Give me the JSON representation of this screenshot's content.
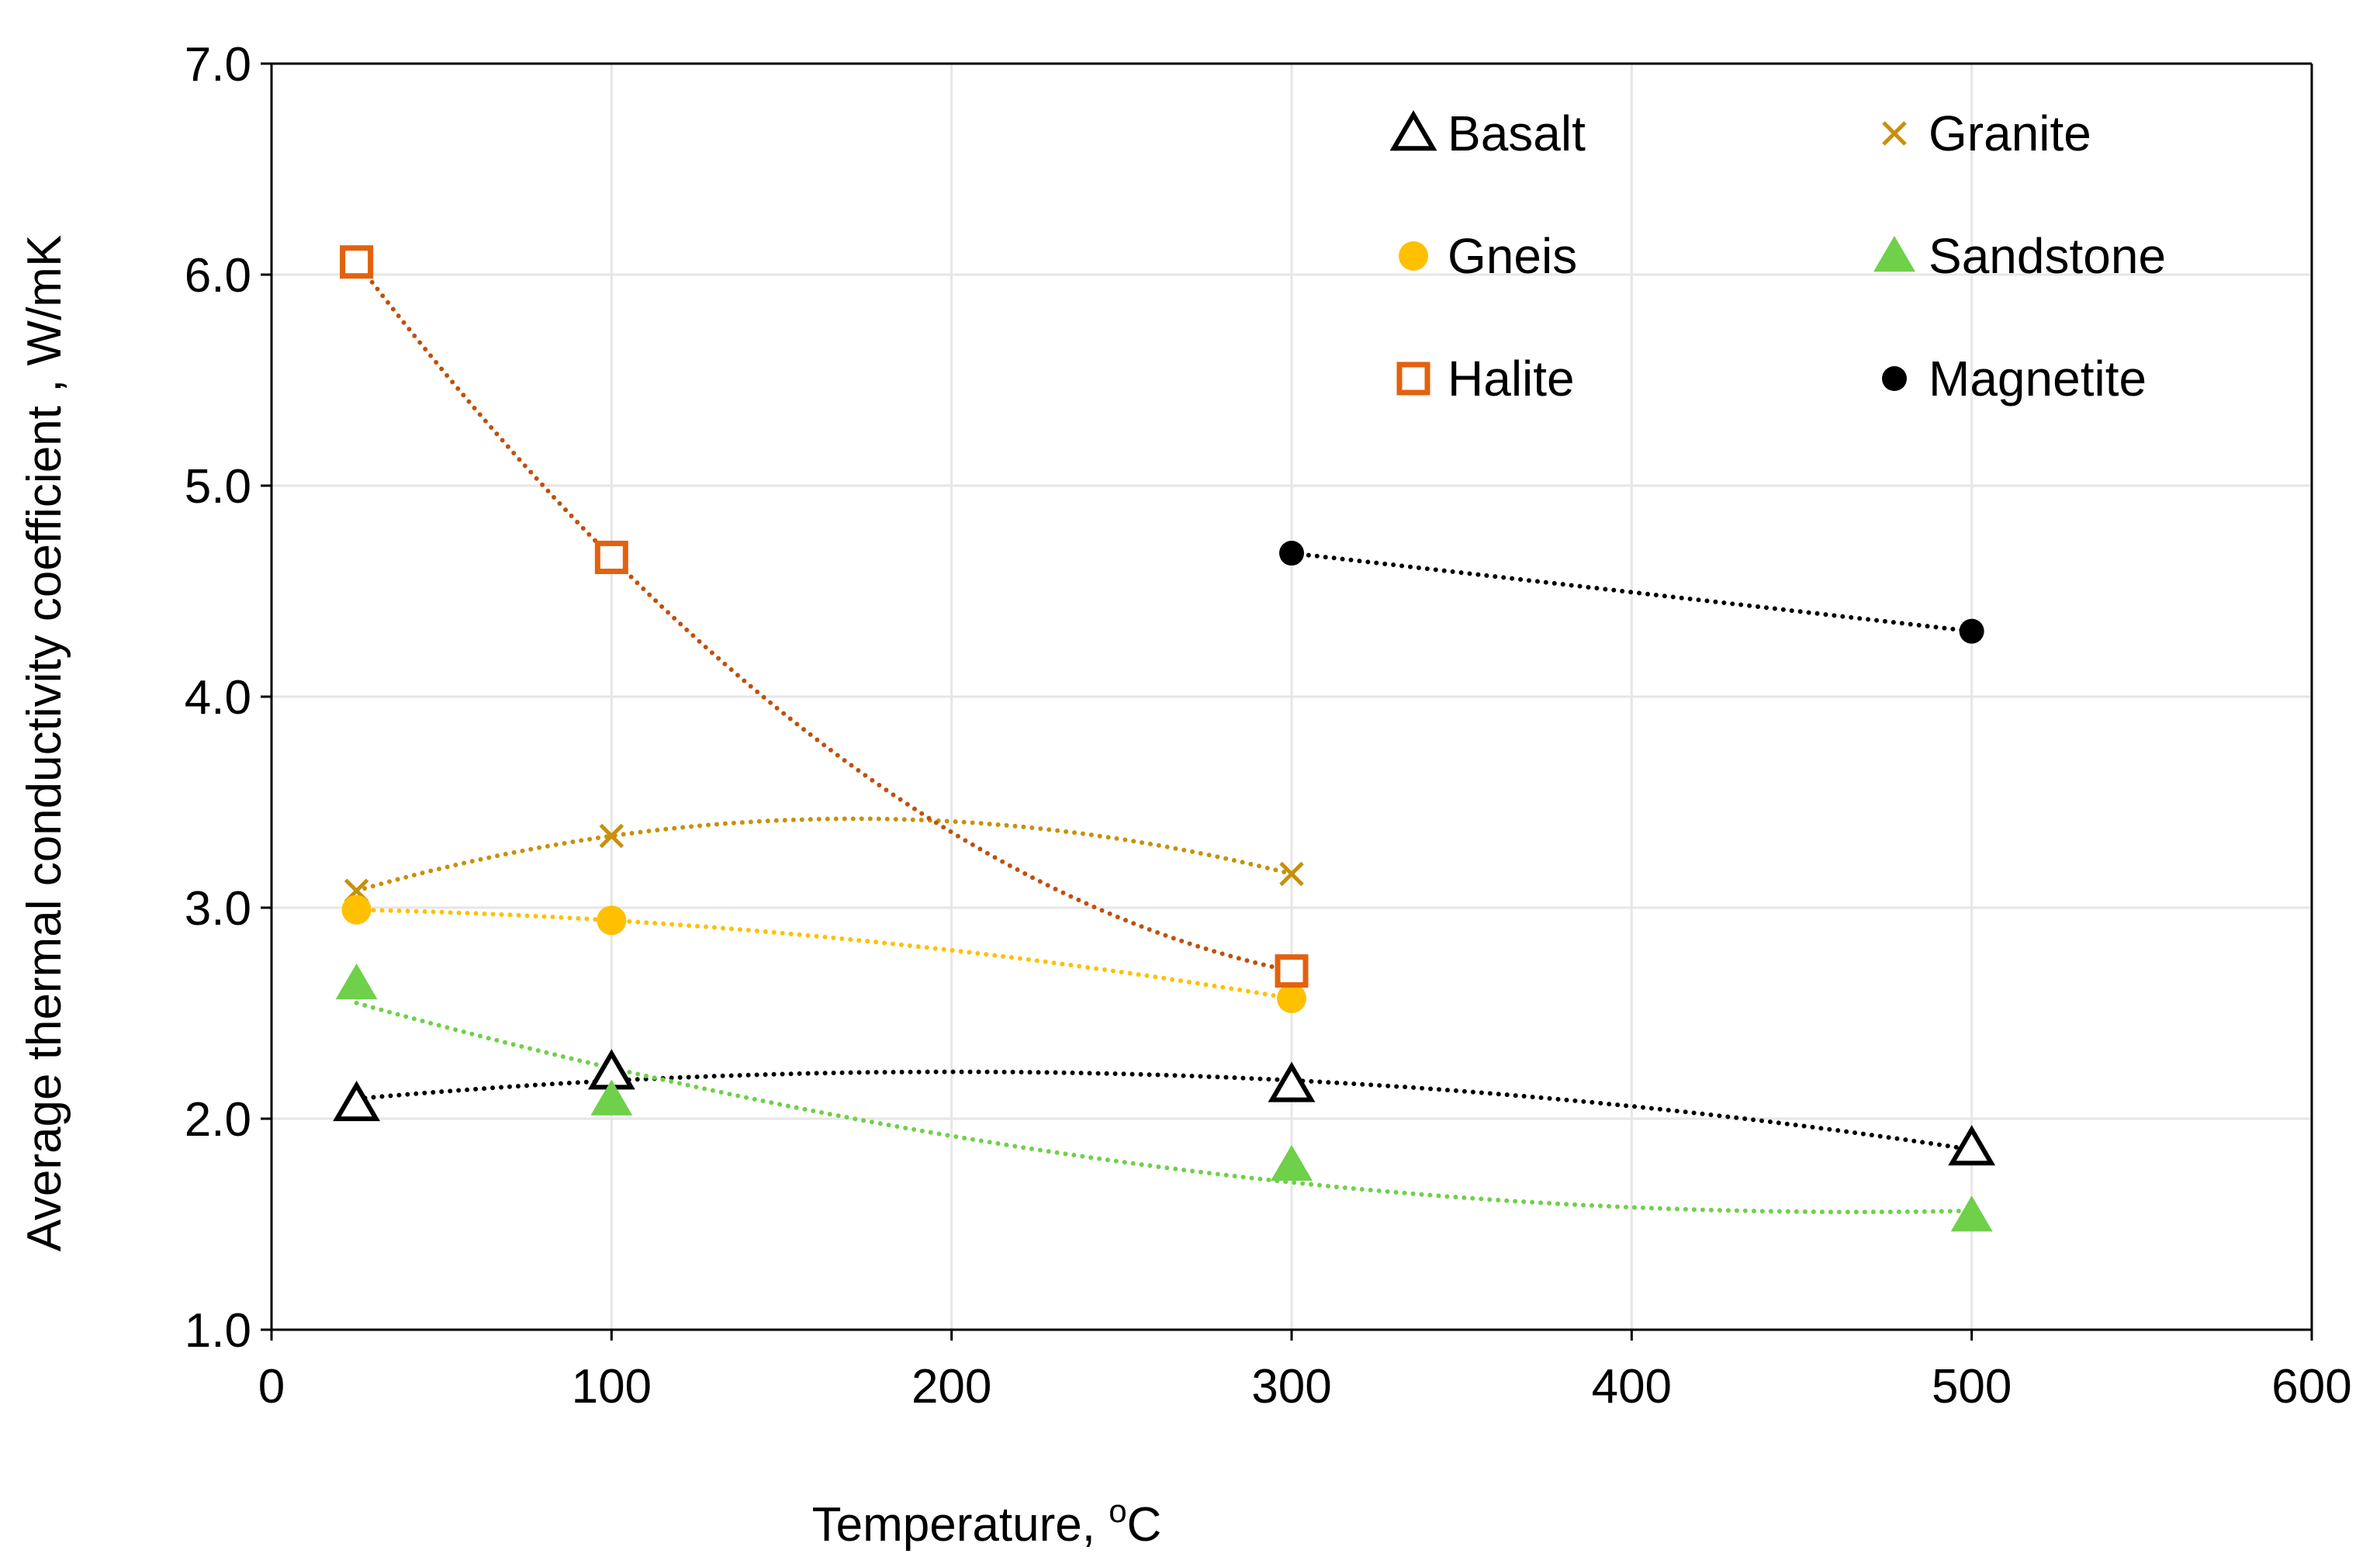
{
  "chart_data": {
    "type": "scatter",
    "title": "",
    "xlabel": "Temperature, ",
    "xlabel_sup": "o",
    "xlabel_unit": "C",
    "ylabel": "Average thermal conductivity coefficient , W/mK",
    "xlim": [
      0,
      600
    ],
    "ylim": [
      1.0,
      7.0
    ],
    "xticks": [
      0,
      100,
      200,
      300,
      400,
      500,
      600
    ],
    "yticks": [
      1.0,
      2.0,
      3.0,
      4.0,
      5.0,
      6.0,
      7.0
    ],
    "ytick_labels": [
      "1.0",
      "2.0",
      "3.0",
      "4.0",
      "5.0",
      "6.0",
      "7.0"
    ],
    "xtick_labels": [
      "0",
      "100",
      "200",
      "300",
      "400",
      "500",
      "600"
    ],
    "grid": true,
    "legend_position": "top-right",
    "trendline_style": "dotted polynomial",
    "series": [
      {
        "name": "Basalt",
        "marker": "open-triangle",
        "color": "#000000",
        "x": [
          25,
          100,
          300,
          500
        ],
        "y": [
          2.07,
          2.22,
          2.16,
          1.86
        ]
      },
      {
        "name": "Granite",
        "marker": "cross",
        "color": "#c8900a",
        "x": [
          25,
          100,
          300
        ],
        "y": [
          3.08,
          3.34,
          3.16
        ]
      },
      {
        "name": "Gneis",
        "marker": "filled-circle",
        "color": "#ffc000",
        "x": [
          25,
          100,
          300
        ],
        "y": [
          2.99,
          2.94,
          2.57
        ]
      },
      {
        "name": "Sandstone",
        "marker": "filled-triangle",
        "color": "#6fd04a",
        "x": [
          25,
          100,
          300,
          500
        ],
        "y": [
          2.64,
          2.09,
          1.78,
          1.54
        ]
      },
      {
        "name": "Halite",
        "marker": "open-square",
        "color": "#e2620e",
        "x": [
          25,
          100,
          300
        ],
        "y": [
          6.06,
          4.66,
          2.7
        ]
      },
      {
        "name": "Magnetite",
        "marker": "small-filled-circle",
        "color": "#000000",
        "x": [
          300,
          500
        ],
        "y": [
          4.68,
          4.31
        ]
      }
    ],
    "trendline_colors": {
      "Basalt": "#000000",
      "Granite": "#c8900a",
      "Gneis": "#ffc000",
      "Sandstone": "#6fd04a",
      "Halite": "#c0500a",
      "Magnetite": "#000000"
    }
  }
}
